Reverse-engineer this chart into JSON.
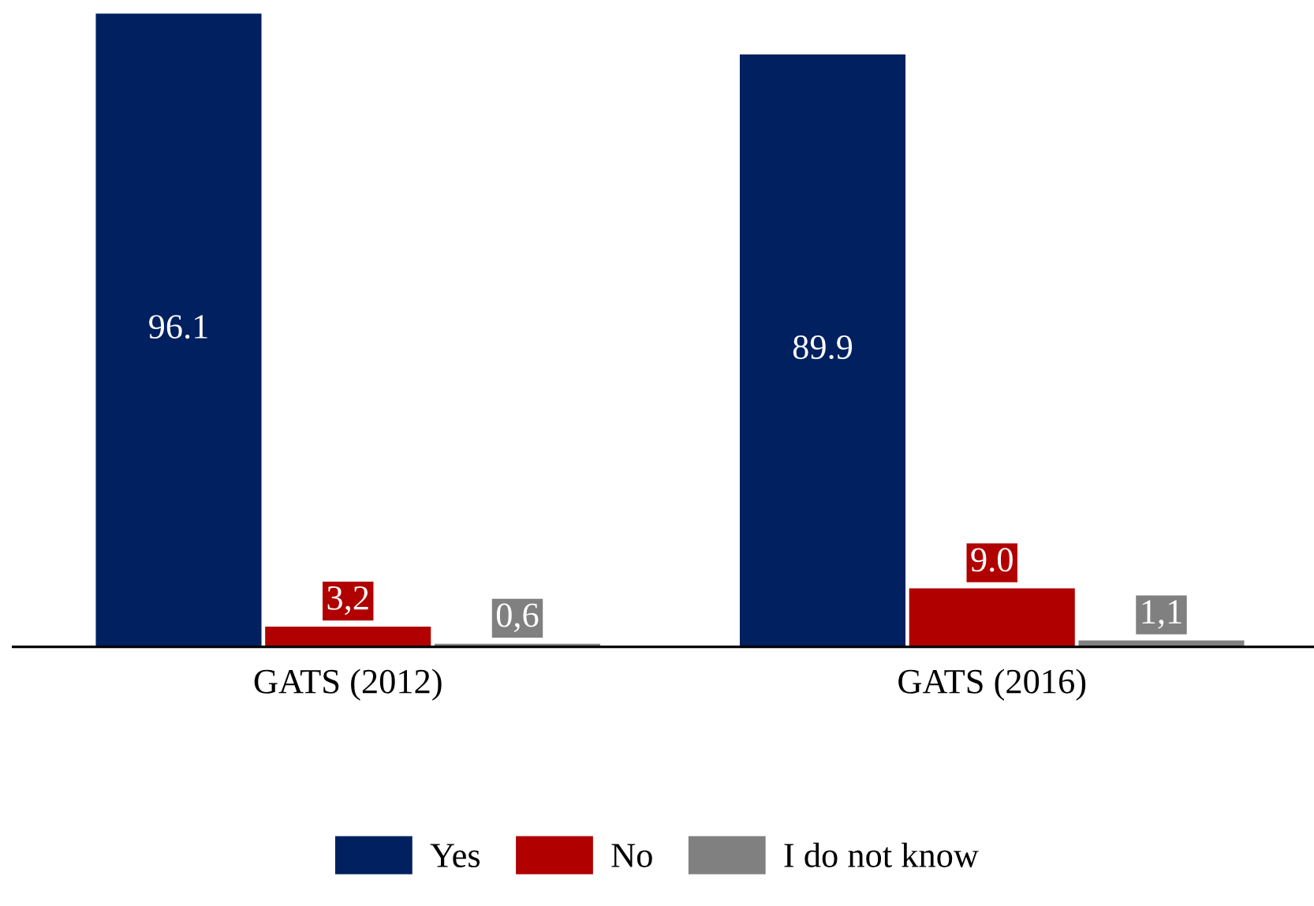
{
  "chart_data": {
    "type": "bar",
    "categories": [
      "GATS (2012)",
      "GATS (2016)"
    ],
    "series": [
      {
        "name": "Yes",
        "color": "#002060",
        "values": [
          96.1,
          89.9
        ],
        "value_labels": [
          "96.1",
          "89.9"
        ]
      },
      {
        "name": "No",
        "color": "#b00000",
        "values": [
          3.2,
          9.0
        ],
        "value_labels": [
          "3,2",
          "9.0"
        ]
      },
      {
        "name": "I do not know",
        "color": "#808080",
        "values": [
          0.6,
          1.1
        ],
        "value_labels": [
          "0,6",
          "1,1"
        ]
      }
    ],
    "legend": "bottom",
    "grid": false
  }
}
